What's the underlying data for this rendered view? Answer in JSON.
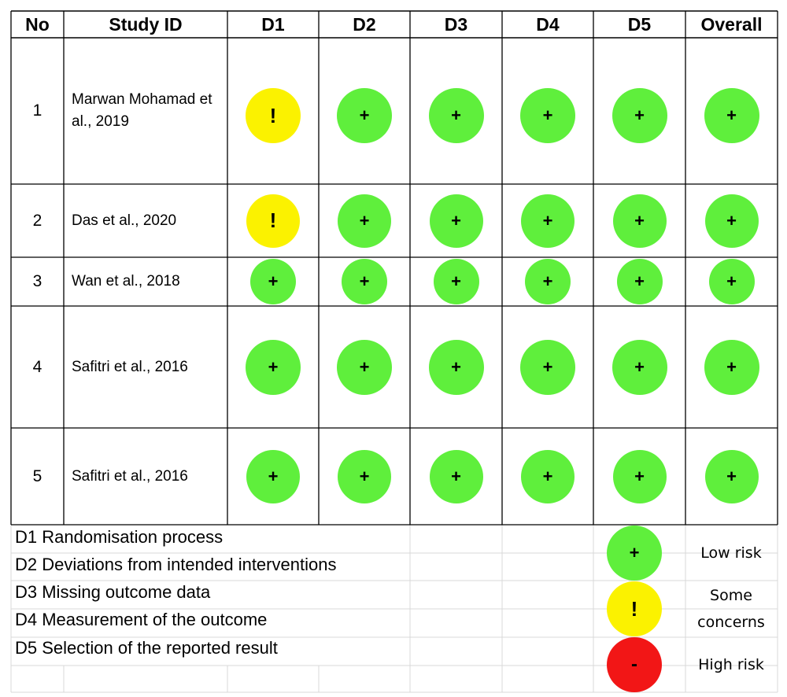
{
  "table": {
    "headers": [
      "No",
      "Study ID",
      "D1",
      "D2",
      "D3",
      "D4",
      "D5",
      "Overall"
    ],
    "rows": [
      {
        "no": "1",
        "study": "Marwan Mohamad et al., 2019",
        "judgements": [
          "some",
          "low",
          "low",
          "low",
          "low",
          "low"
        ]
      },
      {
        "no": "2",
        "study": "Das et al., 2020",
        "judgements": [
          "some",
          "low",
          "low",
          "low",
          "low",
          "low"
        ]
      },
      {
        "no": "3",
        "study": "Wan et al., 2018",
        "judgements": [
          "low",
          "low",
          "low",
          "low",
          "low",
          "low"
        ]
      },
      {
        "no": "4",
        "study": "Safitri et al., 2016",
        "judgements": [
          "low",
          "low",
          "low",
          "low",
          "low",
          "low"
        ]
      },
      {
        "no": "5",
        "study": "Safitri et al., 2016",
        "judgements": [
          "low",
          "low",
          "low",
          "low",
          "low",
          "low"
        ]
      }
    ]
  },
  "domains_legend": [
    "D1 Randomisation process",
    "D2 Deviations from intended interventions",
    "D3 Missing outcome data",
    "D4 Measurement of the outcome",
    "D5 Selection of the reported result"
  ],
  "key": [
    {
      "level": "low",
      "symbol": "+",
      "label": "Low risk"
    },
    {
      "level": "some",
      "symbol": "!",
      "label": "Some concerns"
    },
    {
      "level": "high",
      "symbol": "-",
      "label": "High risk"
    }
  ],
  "colors": {
    "low": "#5fef3c",
    "some": "#fbf200",
    "high": "#f21616",
    "grid_border": "#000000",
    "legend_grid": "#d9d9d9"
  },
  "icons": {
    "low": "plus-icon",
    "some": "exclamation-icon",
    "high": "minus-icon"
  }
}
